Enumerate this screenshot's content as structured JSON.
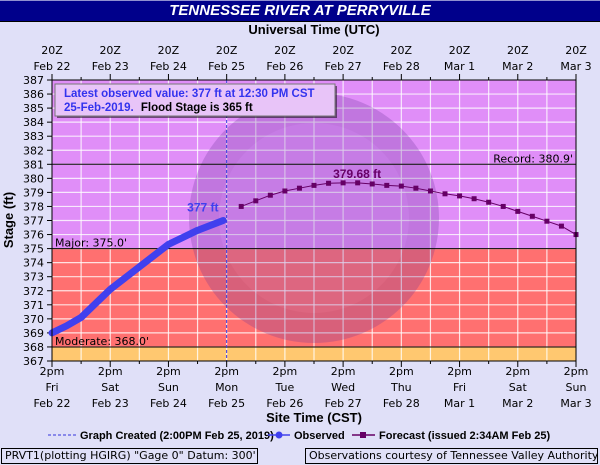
{
  "title": "TENNESSEE RIVER AT PERRYVILLE",
  "colors": {
    "title_bg": "#00008b",
    "background": "#e0e0f8",
    "major_zone": "#e08ef8",
    "moderate_zone": "#ff7070",
    "minor_zone": "#ffc870",
    "observed": "#4040ee",
    "forecast": "#660066",
    "grid": "#ffffff",
    "graph_created": "#3333dd"
  },
  "top_axis": {
    "title": "Universal Time (UTC)",
    "ticks": [
      {
        "time": "20Z",
        "date": "Feb 22"
      },
      {
        "time": "20Z",
        "date": "Feb 23"
      },
      {
        "time": "20Z",
        "date": "Feb 24"
      },
      {
        "time": "20Z",
        "date": "Feb 25"
      },
      {
        "time": "20Z",
        "date": "Feb 26"
      },
      {
        "time": "20Z",
        "date": "Feb 27"
      },
      {
        "time": "20Z",
        "date": "Feb 28"
      },
      {
        "time": "20Z",
        "date": "Mar 1"
      },
      {
        "time": "20Z",
        "date": "Mar 2"
      },
      {
        "time": "20Z",
        "date": "Mar 3"
      }
    ]
  },
  "bottom_axis": {
    "title": "Site Time (CST)",
    "ticks": [
      {
        "time": "2pm",
        "day": "Fri",
        "date": "Feb 22"
      },
      {
        "time": "2pm",
        "day": "Sat",
        "date": "Feb 23"
      },
      {
        "time": "2pm",
        "day": "Sun",
        "date": "Feb 24"
      },
      {
        "time": "2pm",
        "day": "Mon",
        "date": "Feb 25"
      },
      {
        "time": "2pm",
        "day": "Tue",
        "date": "Feb 26"
      },
      {
        "time": "2pm",
        "day": "Wed",
        "date": "Feb 27"
      },
      {
        "time": "2pm",
        "day": "Thu",
        "date": "Feb 28"
      },
      {
        "time": "2pm",
        "day": "Fri",
        "date": "Mar 1"
      },
      {
        "time": "2pm",
        "day": "Sat",
        "date": "Mar 2"
      },
      {
        "time": "2pm",
        "day": "Sun",
        "date": "Mar 3"
      }
    ]
  },
  "y_axis": {
    "title": "Stage (ft)",
    "min": 367,
    "max": 387,
    "ticks": [
      367,
      368,
      369,
      370,
      371,
      372,
      373,
      374,
      375,
      376,
      377,
      378,
      379,
      380,
      381,
      382,
      383,
      384,
      385,
      386,
      387
    ]
  },
  "info_box": {
    "line1": "Latest observed value: 377 ft at 12:30 PM CST",
    "line2_date": "25-Feb-2019.",
    "line2_flood": "Flood Stage is 365 ft"
  },
  "thresholds": {
    "record": {
      "label": "Record: 380.9'",
      "value": 380.9
    },
    "major": {
      "label": "Major: 375.0'",
      "value": 375.0
    },
    "moderate": {
      "label": "Moderate: 368.0'",
      "value": 368.0
    }
  },
  "annotations": {
    "observed_last": "377 ft",
    "forecast_peak": "379.68 ft"
  },
  "legend": {
    "graph_created": "Graph Created (2:00PM Feb 25, 2019)",
    "observed": "Observed",
    "forecast": "Forecast (issued 2:34AM Feb 25)"
  },
  "footer": {
    "left": "PRVT1(plotting HGIRG) \"Gage 0\" Datum: 300'",
    "right": "Observations courtesy of Tennessee Valley Authority"
  },
  "chart_data": {
    "type": "line",
    "title": "TENNESSEE RIVER AT PERRYVILLE",
    "xlabel": "Site Time (CST)",
    "xlabel_top": "Universal Time (UTC)",
    "ylabel": "Stage (ft)",
    "ylim": [
      367,
      387
    ],
    "x_units": "days since Feb 22 2pm CST",
    "xlim": [
      0,
      9
    ],
    "grid": true,
    "legend_position": "bottom",
    "graph_created_x": 3.0,
    "series": [
      {
        "name": "Observed",
        "x": [
          0,
          0.25,
          0.5,
          0.75,
          1.0,
          1.25,
          1.5,
          1.75,
          2.0,
          2.25,
          2.5,
          2.75,
          2.94
        ],
        "y": [
          369.0,
          369.5,
          370.1,
          371.1,
          372.1,
          372.9,
          373.7,
          374.5,
          375.3,
          375.8,
          376.3,
          376.7,
          377.0
        ]
      },
      {
        "name": "Forecast",
        "x": [
          3.25,
          3.5,
          3.75,
          4.0,
          4.25,
          4.5,
          4.75,
          5.0,
          5.25,
          5.5,
          5.75,
          6.0,
          6.25,
          6.5,
          6.75,
          7.0,
          7.25,
          7.5,
          7.75,
          8.0,
          8.25,
          8.5,
          8.75,
          9.0
        ],
        "y": [
          378.0,
          378.4,
          378.8,
          379.1,
          379.3,
          379.5,
          379.65,
          379.68,
          379.68,
          379.6,
          379.5,
          379.45,
          379.3,
          379.1,
          378.9,
          378.75,
          378.55,
          378.3,
          378.0,
          377.65,
          377.3,
          376.95,
          376.6,
          376.0
        ]
      }
    ],
    "thresholds": [
      {
        "name": "Record",
        "value": 380.9
      },
      {
        "name": "Major",
        "value": 375.0
      },
      {
        "name": "Moderate",
        "value": 368.0
      },
      {
        "name": "Flood Stage",
        "value": 365
      }
    ],
    "annotations": [
      "377 ft",
      "379.68 ft"
    ]
  }
}
